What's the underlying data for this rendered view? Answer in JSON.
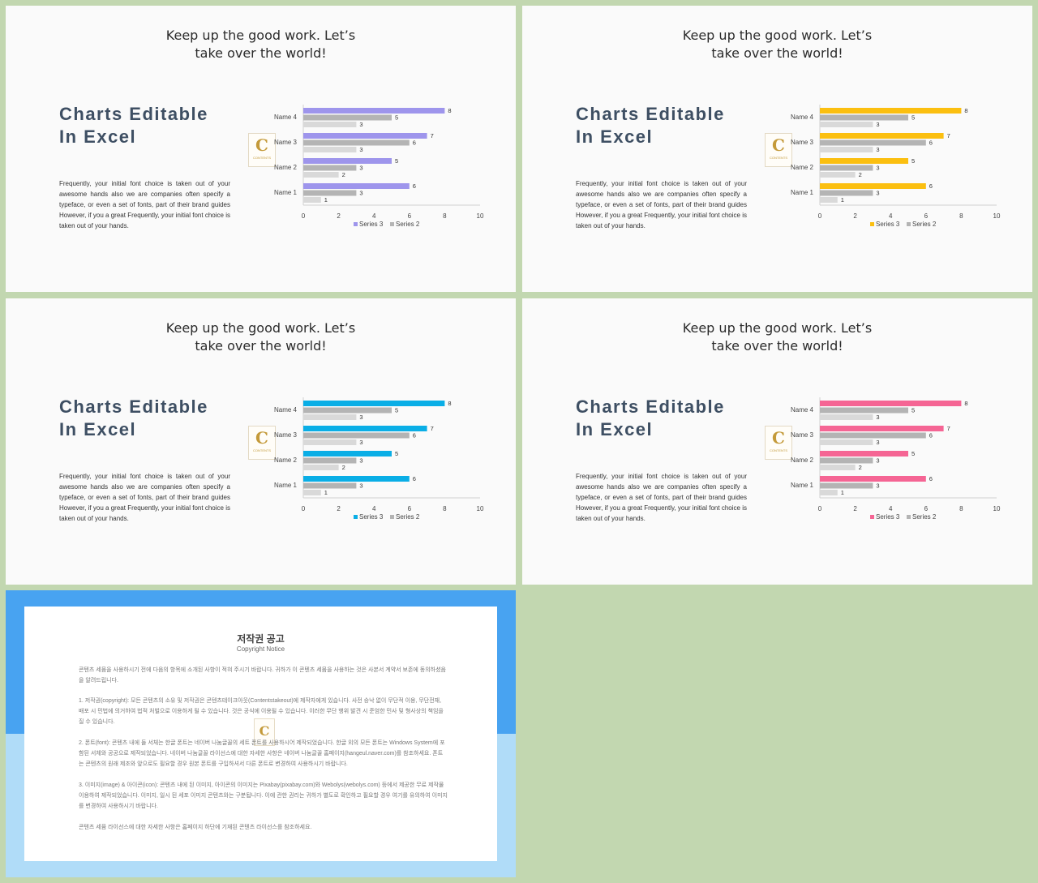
{
  "slides": [
    {
      "headline_line1": "Keep up the good work. Let’s",
      "headline_line2": "take over the world!",
      "title_line1": "Charts Editable",
      "title_line2": "In Excel",
      "body": "Frequently, your initial font choice is taken out of your awesome hands also we are companies often specify a typeface, or even a set of fonts, part of their brand guides However, if you a great Frequently, your initial font choice is taken out of your hands.",
      "accent": "#9e95ec"
    },
    {
      "headline_line1": "Keep up the good work. Let’s",
      "headline_line2": "take over the world!",
      "title_line1": "Charts Editable",
      "title_line2": "In Excel",
      "body": "Frequently, your initial font choice is taken out of your awesome hands also we are companies often specify a typeface, or even a set of fonts, part of their brand guides However, if you a great Frequently, your initial font choice is taken out of your hands.",
      "accent": "#fbbf10"
    },
    {
      "headline_line1": "Keep up the good work. Let’s",
      "headline_line2": "take over the world!",
      "title_line1": "Charts Editable",
      "title_line2": "In Excel",
      "body": "Frequently, your initial font choice is taken out of your awesome hands also we are companies often specify a typeface, or even a set of fonts, part of their brand guides However, if you a great Frequently, your initial font choice is taken out of your hands.",
      "accent": "#0aaee6"
    },
    {
      "headline_line1": "Keep up the good work. Let’s",
      "headline_line2": "take over the world!",
      "title_line1": "Charts Editable",
      "title_line2": "In Excel",
      "body": "Frequently, your initial font choice is taken out of your awesome hands also we are companies often specify a typeface, or even a set of fonts, part of their brand guides However, if you a great Frequently, your initial font choice is taken out of your hands.",
      "accent": "#f56594"
    }
  ],
  "logo": {
    "letter": "C",
    "text": "CONTENTS"
  },
  "chart_data": [
    {
      "type": "bar",
      "orientation": "horizontal",
      "categories": [
        "Name 1",
        "Name 2",
        "Name 3",
        "Name 4"
      ],
      "series": [
        {
          "name": "Series 3",
          "values": [
            6,
            5,
            7,
            8
          ]
        },
        {
          "name": "Series 2",
          "values": [
            3,
            3,
            6,
            5
          ]
        },
        {
          "values": [
            1,
            2,
            3,
            3
          ]
        }
      ],
      "xlim": [
        0,
        10
      ],
      "xticks": [
        0,
        2,
        4,
        6,
        8,
        10
      ],
      "legend": "bottom",
      "data_labels": true
    },
    {
      "type": "bar",
      "orientation": "horizontal",
      "categories": [
        "Name 1",
        "Name 2",
        "Name 3",
        "Name 4"
      ],
      "series": [
        {
          "name": "Series 3",
          "values": [
            6,
            5,
            7,
            8
          ]
        },
        {
          "name": "Series 2",
          "values": [
            3,
            3,
            6,
            5
          ]
        },
        {
          "values": [
            1,
            2,
            3,
            3
          ]
        }
      ],
      "xlim": [
        0,
        10
      ],
      "xticks": [
        0,
        2,
        4,
        6,
        8,
        10
      ],
      "legend": "bottom",
      "data_labels": true
    },
    {
      "type": "bar",
      "orientation": "horizontal",
      "categories": [
        "Name 1",
        "Name 2",
        "Name 3",
        "Name 4"
      ],
      "series": [
        {
          "name": "Series 3",
          "values": [
            6,
            5,
            7,
            8
          ]
        },
        {
          "name": "Series 2",
          "values": [
            3,
            3,
            6,
            5
          ]
        },
        {
          "values": [
            1,
            2,
            3,
            3
          ]
        }
      ],
      "xlim": [
        0,
        10
      ],
      "xticks": [
        0,
        2,
        4,
        6,
        8,
        10
      ],
      "legend": "bottom",
      "data_labels": true
    },
    {
      "type": "bar",
      "orientation": "horizontal",
      "categories": [
        "Name 1",
        "Name 2",
        "Name 3",
        "Name 4"
      ],
      "series": [
        {
          "name": "Series 3",
          "values": [
            6,
            5,
            7,
            8
          ]
        },
        {
          "name": "Series 2",
          "values": [
            3,
            3,
            6,
            5
          ]
        },
        {
          "values": [
            1,
            2,
            3,
            3
          ]
        }
      ],
      "xlim": [
        0,
        10
      ],
      "xticks": [
        0,
        2,
        4,
        6,
        8,
        10
      ],
      "legend": "bottom",
      "data_labels": true
    }
  ],
  "series_colors": {
    "series2": "#b4b4b4",
    "series_third": "#d9d9d9"
  },
  "notice": {
    "title": "저작권 공고",
    "subtitle": "Copyright Notice",
    "p1": "콘텐츠 세뮴을 사용하시기 전에 다음의 항목에 소개된 사항이 적혀 주시기 바랍니다. 귀하가 이 콘텐츠 세뮴을 사용하는 것은 사본서 계약서 보존에 동의하셨음을 알려드립니다.",
    "p2": "1. 저작권(copyright): 모든 콘텐츠의 소유 및 저작권은 콘텐츠테이크아웃(Contentstakeout)에 제작자에게 있습니다. 사전 승낙 없이 무단적 이용, 무단전재, 배포 시 민법에 의거하여 법적 처벌으로 이용하게 될 수 있습니다. 것은 공식에 이용될 수 있습니다. 이러한 무단 행위 발견 시 준엄한 민사 및 형사상의 책임을 질 수 있습니다.",
    "p3": "2. 폰트(font): 콘텐츠 내에 들 서체는 한글 폰트는 네이버 나눔글꼴의 세트 폰트를 사용하시어 제작되었습니다. 한글 외의 모든 폰트는 Windows System에 포함된 서체와 공공으로 제작되었습니다. 네이버 나눔글꼴 라이선스에 대한 자세한 사항은 네이버 나눔글꼴 홈페이지(hangeul.naver.com)를 참조하세요. 폰트는 콘텐츠의 원래 제조와 앞으로도 필요할 경우 원본 폰트를 구입하셔서 다른 폰트로 변경하여 사용하시기 바랍니다.",
    "p4": "3. 이미지(image) & 아이콘(icon): 콘텐츠 내에 된 이미지, 아이콘의 이미지는 Pixabay(pixabay.com)와 Webolys(webolys.com) 등에서 제공한 무료 제작물 이용하여 제작되었습니다. 이미지, 일시 된 세포 이미지 콘텐츠와는 구분됩니다. 이에 관한 권리는 귀하가 별도로 확인하고 필요할 경우 여기를 유의하여 이미지를 변경하여 사용하시기 바랍니다.",
    "p5": "콘텐츠 세뮴 라이선스에 대한 자세한 사항은 홈페이지 하단에 기재된 콘텐츠 라이선스를 참조하세요."
  }
}
